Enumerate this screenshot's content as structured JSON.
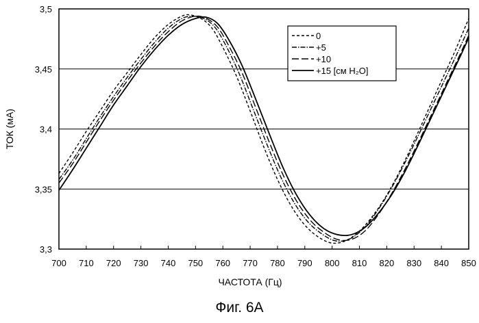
{
  "caption": "Фиг. 6A",
  "chart_data": {
    "type": "line",
    "xlabel": "ЧАСТОТА (Гц)",
    "ylabel": "ТОК (мА)",
    "xlim": [
      700,
      850
    ],
    "ylim": [
      3.3,
      3.5
    ],
    "xticks": [
      "700",
      "710",
      "720",
      "730",
      "740",
      "750",
      "760",
      "770",
      "780",
      "790",
      "800",
      "810",
      "820",
      "830",
      "840",
      "850"
    ],
    "yticks": [
      "3,3",
      "3,35",
      "3,4",
      "3,45",
      "3,5"
    ],
    "grid": "horizontal",
    "legend_position": "top-right",
    "series": [
      {
        "name": "0",
        "style": "short-dash",
        "points": [
          [
            700,
            3.363
          ],
          [
            705,
            3.38
          ],
          [
            710,
            3.398
          ],
          [
            715,
            3.415
          ],
          [
            720,
            3.432
          ],
          [
            725,
            3.447
          ],
          [
            730,
            3.462
          ],
          [
            735,
            3.476
          ],
          [
            740,
            3.487
          ],
          [
            745,
            3.494
          ],
          [
            748,
            3.495
          ],
          [
            752,
            3.492
          ],
          [
            756,
            3.484
          ],
          [
            760,
            3.468
          ],
          [
            765,
            3.444
          ],
          [
            770,
            3.415
          ],
          [
            775,
            3.385
          ],
          [
            780,
            3.358
          ],
          [
            785,
            3.336
          ],
          [
            790,
            3.32
          ],
          [
            795,
            3.31
          ],
          [
            800,
            3.305
          ],
          [
            805,
            3.307
          ],
          [
            810,
            3.315
          ],
          [
            815,
            3.328
          ],
          [
            820,
            3.345
          ],
          [
            825,
            3.366
          ],
          [
            830,
            3.39
          ],
          [
            835,
            3.415
          ],
          [
            840,
            3.44
          ],
          [
            845,
            3.465
          ],
          [
            850,
            3.492
          ]
        ]
      },
      {
        "name": "+5",
        "style": "dash-dot",
        "points": [
          [
            700,
            3.358
          ],
          [
            705,
            3.374
          ],
          [
            710,
            3.392
          ],
          [
            715,
            3.41
          ],
          [
            720,
            3.427
          ],
          [
            725,
            3.443
          ],
          [
            730,
            3.458
          ],
          [
            735,
            3.472
          ],
          [
            740,
            3.484
          ],
          [
            745,
            3.492
          ],
          [
            749,
            3.494
          ],
          [
            753,
            3.492
          ],
          [
            757,
            3.485
          ],
          [
            761,
            3.47
          ],
          [
            766,
            3.446
          ],
          [
            771,
            3.417
          ],
          [
            776,
            3.388
          ],
          [
            781,
            3.361
          ],
          [
            786,
            3.339
          ],
          [
            791,
            3.323
          ],
          [
            796,
            3.313
          ],
          [
            801,
            3.307
          ],
          [
            806,
            3.308
          ],
          [
            811,
            3.316
          ],
          [
            816,
            3.33
          ],
          [
            821,
            3.348
          ],
          [
            826,
            3.369
          ],
          [
            831,
            3.392
          ],
          [
            836,
            3.416
          ],
          [
            841,
            3.44
          ],
          [
            846,
            3.464
          ],
          [
            850,
            3.484
          ]
        ]
      },
      {
        "name": "+10",
        "style": "long-dash",
        "points": [
          [
            700,
            3.355
          ],
          [
            705,
            3.371
          ],
          [
            710,
            3.389
          ],
          [
            715,
            3.407
          ],
          [
            720,
            3.424
          ],
          [
            725,
            3.44
          ],
          [
            730,
            3.455
          ],
          [
            735,
            3.469
          ],
          [
            740,
            3.481
          ],
          [
            745,
            3.49
          ],
          [
            750,
            3.494
          ],
          [
            754,
            3.492
          ],
          [
            758,
            3.485
          ],
          [
            762,
            3.47
          ],
          [
            767,
            3.447
          ],
          [
            772,
            3.418
          ],
          [
            777,
            3.389
          ],
          [
            782,
            3.362
          ],
          [
            787,
            3.34
          ],
          [
            792,
            3.324
          ],
          [
            797,
            3.314
          ],
          [
            802,
            3.308
          ],
          [
            807,
            3.308
          ],
          [
            812,
            3.315
          ],
          [
            817,
            3.329
          ],
          [
            822,
            3.347
          ],
          [
            827,
            3.368
          ],
          [
            832,
            3.391
          ],
          [
            837,
            3.415
          ],
          [
            842,
            3.439
          ],
          [
            847,
            3.463
          ],
          [
            850,
            3.478
          ]
        ]
      },
      {
        "name": "+15 [см H₂O]",
        "style": "solid",
        "points": [
          [
            700,
            3.349
          ],
          [
            705,
            3.366
          ],
          [
            710,
            3.384
          ],
          [
            715,
            3.402
          ],
          [
            720,
            3.42
          ],
          [
            725,
            3.436
          ],
          [
            730,
            3.452
          ],
          [
            735,
            3.466
          ],
          [
            740,
            3.478
          ],
          [
            745,
            3.487
          ],
          [
            750,
            3.492
          ],
          [
            754,
            3.493
          ],
          [
            758,
            3.488
          ],
          [
            762,
            3.475
          ],
          [
            767,
            3.453
          ],
          [
            772,
            3.425
          ],
          [
            777,
            3.396
          ],
          [
            782,
            3.368
          ],
          [
            787,
            3.345
          ],
          [
            792,
            3.328
          ],
          [
            797,
            3.317
          ],
          [
            802,
            3.312
          ],
          [
            807,
            3.312
          ],
          [
            812,
            3.318
          ],
          [
            817,
            3.33
          ],
          [
            822,
            3.346
          ],
          [
            827,
            3.366
          ],
          [
            832,
            3.389
          ],
          [
            837,
            3.413
          ],
          [
            842,
            3.437
          ],
          [
            847,
            3.461
          ],
          [
            850,
            3.476
          ]
        ]
      }
    ]
  }
}
